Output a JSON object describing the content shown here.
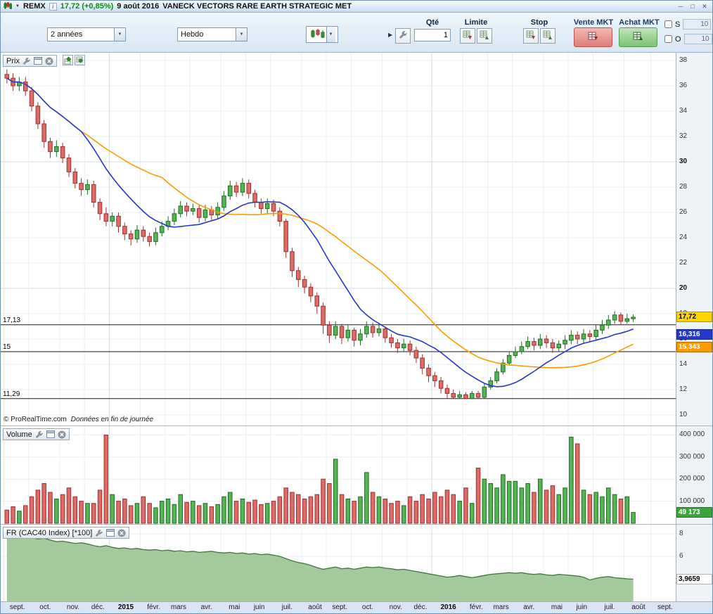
{
  "window": {
    "symbol": "REMX",
    "quote": "17,72 (+0,85%)",
    "date": "9 août 2016",
    "name": "VANECK VECTORS RARE EARTH STRATEGIC MET"
  },
  "icons": {
    "chevron_down": "▼",
    "collapse_arrow": "▶",
    "minimize": "─",
    "maximize": "□",
    "close": "✕",
    "info": "i"
  },
  "toolbar": {
    "period": "2 années",
    "timeframe": "Hebdo",
    "qty_label": "Qté",
    "qty_value": "1",
    "limit_label": "Limite",
    "stop_label": "Stop",
    "sell_mkt_label": "Vente MKT",
    "buy_mkt_label": "Achat MKT",
    "s_label": "S",
    "s_value": "10",
    "o_label": "O",
    "o_value": "10"
  },
  "panels": {
    "price": {
      "label": "Prix",
      "copyright": "© ProRealTime.com",
      "copyright_note": "Données en fin de journée"
    },
    "volume": {
      "label": "Volume"
    },
    "index": {
      "label": "FR (CAC40 Index) [*100]"
    }
  },
  "colors": {
    "candle_up": "#55b455",
    "candle_up_border": "#1e6e1e",
    "candle_down": "#dd6b66",
    "candle_down_border": "#a03030",
    "ma_fast": "#2438cc",
    "ma_slow": "#ff9a00",
    "index_fill": "#a3c99c",
    "index_line": "#42753f",
    "hline": "#1a1a1a"
  },
  "chart_data": {
    "type": "candlestick",
    "timeframe": "weekly",
    "x_months": [
      {
        "label": "sept.",
        "start": 0
      },
      {
        "label": "oct.",
        "start": 4
      },
      {
        "label": "nov.",
        "start": 9
      },
      {
        "label": "déc.",
        "start": 13
      },
      {
        "label": "2015",
        "start": 17,
        "bold": true
      },
      {
        "label": "févr.",
        "start": 22
      },
      {
        "label": "mars",
        "start": 26
      },
      {
        "label": "avr.",
        "start": 30
      },
      {
        "label": "mai",
        "start": 35
      },
      {
        "label": "juin",
        "start": 39
      },
      {
        "label": "juil.",
        "start": 43
      },
      {
        "label": "août",
        "start": 48
      },
      {
        "label": "sept.",
        "start": 52
      },
      {
        "label": "oct.",
        "start": 56
      },
      {
        "label": "nov.",
        "start": 61
      },
      {
        "label": "déc.",
        "start": 65
      },
      {
        "label": "2016",
        "start": 69,
        "bold": true
      },
      {
        "label": "févr.",
        "start": 74
      },
      {
        "label": "mars",
        "start": 78
      },
      {
        "label": "avr.",
        "start": 82
      },
      {
        "label": "mai",
        "start": 87
      },
      {
        "label": "juin",
        "start": 91
      },
      {
        "label": "juil.",
        "start": 95
      },
      {
        "label": "août",
        "start": 100
      },
      {
        "label": "sept.",
        "start": 104.3
      }
    ],
    "price": {
      "ylim": [
        10,
        38
      ],
      "ticks": [
        38,
        36,
        34,
        32,
        30,
        28,
        26,
        24,
        22,
        20,
        18,
        16,
        14,
        12,
        10
      ],
      "bold_ticks": [
        30,
        20
      ],
      "hlines": [
        {
          "value": 17.13,
          "label": "17,13"
        },
        {
          "value": 15,
          "label": "15"
        },
        {
          "value": 11.29,
          "label": "11,29"
        }
      ],
      "badges": [
        {
          "value": 17.72,
          "text": "17,72",
          "bg": "#ffd400",
          "fg": "#000000"
        },
        {
          "value": 16.316,
          "text": "16,316",
          "bg": "#2438cc",
          "fg": "#ffffff"
        },
        {
          "value": 15.343,
          "text": "15,343",
          "bg": "#ff9a00",
          "fg": "#ffffff"
        }
      ]
    },
    "moving_averages": [
      {
        "name": "MA fast",
        "period": 13,
        "color": "#2438cc",
        "last": 16.316
      },
      {
        "name": "MA slow",
        "period": 26,
        "color": "#ff9a00",
        "last": 15.343
      }
    ],
    "candles": [
      [
        36.9,
        37.3,
        36.2,
        36.6
      ],
      [
        36.6,
        37.0,
        35.6,
        36.0
      ],
      [
        36.0,
        36.7,
        35.6,
        36.3
      ],
      [
        36.3,
        36.7,
        35.2,
        35.6
      ],
      [
        35.6,
        35.9,
        34.0,
        34.4
      ],
      [
        34.4,
        34.7,
        32.6,
        33.0
      ],
      [
        33.0,
        33.3,
        31.1,
        31.6
      ],
      [
        31.6,
        31.9,
        30.3,
        30.8
      ],
      [
        30.8,
        31.7,
        30.4,
        31.2
      ],
      [
        31.2,
        31.5,
        29.9,
        30.3
      ],
      [
        30.3,
        30.6,
        28.8,
        29.2
      ],
      [
        29.2,
        29.5,
        27.9,
        28.3
      ],
      [
        28.3,
        28.7,
        27.3,
        27.8
      ],
      [
        27.8,
        28.6,
        27.4,
        28.2
      ],
      [
        28.2,
        28.5,
        26.4,
        26.8
      ],
      [
        26.8,
        27.1,
        25.4,
        25.9
      ],
      [
        25.9,
        26.4,
        24.9,
        25.3
      ],
      [
        25.3,
        26.0,
        24.9,
        25.7
      ],
      [
        25.7,
        26.0,
        24.4,
        24.9
      ],
      [
        24.9,
        25.2,
        23.8,
        24.3
      ],
      [
        24.3,
        24.6,
        23.4,
        23.9
      ],
      [
        23.9,
        25.0,
        23.6,
        24.6
      ],
      [
        24.6,
        24.9,
        23.7,
        24.1
      ],
      [
        24.1,
        24.4,
        23.3,
        23.7
      ],
      [
        23.7,
        24.8,
        23.4,
        24.4
      ],
      [
        24.4,
        25.3,
        24.1,
        24.9
      ],
      [
        24.9,
        25.7,
        24.6,
        25.3
      ],
      [
        25.3,
        26.3,
        25.0,
        25.9
      ],
      [
        25.9,
        26.9,
        25.6,
        26.5
      ],
      [
        26.5,
        26.8,
        25.7,
        26.1
      ],
      [
        26.1,
        26.7,
        25.8,
        26.3
      ],
      [
        26.3,
        26.6,
        25.2,
        25.6
      ],
      [
        25.6,
        26.6,
        25.3,
        26.2
      ],
      [
        26.2,
        26.5,
        25.4,
        25.8
      ],
      [
        25.8,
        26.8,
        25.5,
        26.4
      ],
      [
        26.4,
        27.7,
        26.1,
        27.3
      ],
      [
        27.3,
        28.5,
        27.0,
        28.1
      ],
      [
        28.1,
        28.4,
        27.2,
        27.6
      ],
      [
        27.6,
        28.7,
        27.3,
        28.3
      ],
      [
        28.3,
        28.6,
        27.1,
        27.5
      ],
      [
        27.5,
        27.8,
        26.4,
        26.8
      ],
      [
        26.8,
        27.1,
        25.9,
        26.3
      ],
      [
        26.3,
        27.1,
        25.9,
        26.7
      ],
      [
        26.7,
        27.0,
        25.7,
        26.1
      ],
      [
        26.1,
        26.4,
        24.9,
        25.3
      ],
      [
        25.3,
        25.5,
        22.4,
        22.9
      ],
      [
        22.9,
        23.2,
        20.9,
        21.4
      ],
      [
        21.4,
        21.7,
        20.1,
        20.7
      ],
      [
        20.7,
        21.0,
        19.6,
        20.1
      ],
      [
        20.1,
        20.4,
        18.9,
        19.4
      ],
      [
        19.4,
        19.7,
        18.0,
        18.6
      ],
      [
        18.6,
        18.9,
        16.4,
        17.1
      ],
      [
        17.1,
        17.4,
        15.7,
        16.3
      ],
      [
        16.3,
        17.4,
        16.0,
        17.0
      ],
      [
        17.0,
        17.2,
        15.6,
        16.1
      ],
      [
        16.1,
        17.1,
        15.8,
        16.7
      ],
      [
        16.7,
        16.9,
        15.4,
        15.9
      ],
      [
        15.9,
        16.8,
        15.5,
        16.4
      ],
      [
        16.4,
        17.4,
        16.1,
        17.0
      ],
      [
        17.0,
        17.3,
        16.1,
        16.5
      ],
      [
        16.5,
        17.2,
        16.2,
        16.8
      ],
      [
        16.8,
        17.0,
        15.7,
        16.1
      ],
      [
        16.1,
        16.4,
        15.3,
        15.7
      ],
      [
        15.7,
        16.0,
        14.9,
        15.3
      ],
      [
        15.3,
        16.0,
        15.0,
        15.6
      ],
      [
        15.6,
        15.9,
        14.7,
        15.1
      ],
      [
        15.1,
        15.4,
        14.1,
        14.5
      ],
      [
        14.5,
        14.8,
        13.2,
        13.7
      ],
      [
        13.7,
        14.0,
        12.6,
        13.1
      ],
      [
        13.1,
        13.4,
        12.2,
        12.7
      ],
      [
        12.7,
        13.0,
        11.7,
        12.1
      ],
      [
        12.1,
        12.4,
        11.3,
        11.7
      ],
      [
        11.7,
        12.0,
        11.3,
        11.4
      ],
      [
        11.4,
        11.9,
        11.29,
        11.6
      ],
      [
        11.6,
        11.8,
        11.29,
        11.3
      ],
      [
        11.3,
        11.9,
        11.25,
        11.7
      ],
      [
        11.7,
        11.9,
        11.3,
        11.4
      ],
      [
        11.4,
        12.5,
        11.3,
        12.2
      ],
      [
        12.2,
        13.0,
        12.0,
        12.7
      ],
      [
        12.7,
        13.7,
        12.5,
        13.4
      ],
      [
        13.4,
        14.4,
        13.2,
        14.1
      ],
      [
        14.1,
        15.0,
        13.9,
        14.7
      ],
      [
        14.7,
        15.4,
        14.5,
        15.0
      ],
      [
        15.0,
        15.8,
        14.8,
        15.4
      ],
      [
        15.4,
        16.2,
        15.2,
        15.8
      ],
      [
        15.8,
        16.1,
        15.1,
        15.5
      ],
      [
        15.5,
        16.4,
        15.2,
        16.0
      ],
      [
        16.0,
        16.3,
        15.3,
        15.7
      ],
      [
        15.7,
        16.0,
        14.9,
        15.3
      ],
      [
        15.3,
        15.9,
        15.0,
        15.6
      ],
      [
        15.6,
        16.3,
        15.2,
        15.9
      ],
      [
        15.9,
        16.7,
        15.6,
        16.3
      ],
      [
        16.3,
        16.6,
        15.6,
        16.0
      ],
      [
        16.0,
        16.8,
        15.7,
        16.4
      ],
      [
        16.4,
        16.7,
        15.8,
        16.2
      ],
      [
        16.2,
        17.1,
        15.9,
        16.7
      ],
      [
        16.7,
        17.5,
        16.4,
        17.1
      ],
      [
        17.1,
        17.9,
        16.8,
        17.5
      ],
      [
        17.5,
        18.2,
        17.2,
        17.9
      ],
      [
        17.9,
        18.1,
        17.1,
        17.4
      ],
      [
        17.4,
        18.0,
        17.2,
        17.6
      ],
      [
        17.6,
        17.95,
        17.35,
        17.72
      ]
    ],
    "volume": {
      "ticks": [
        {
          "value": 400000,
          "label": "400 000"
        },
        {
          "value": 300000,
          "label": "300 000"
        },
        {
          "value": 200000,
          "label": "200 000"
        },
        {
          "value": 100000,
          "label": "100 000"
        }
      ],
      "badge": {
        "value": 49173,
        "text": "49 173",
        "bg": "#3aa63a",
        "fg": "#ffffff"
      },
      "values": [
        60000,
        75000,
        55000,
        80000,
        120000,
        150000,
        180000,
        140000,
        110000,
        130000,
        160000,
        120000,
        100000,
        90000,
        90000,
        150000,
        400000,
        130000,
        100000,
        110000,
        80000,
        90000,
        120000,
        90000,
        70000,
        100000,
        110000,
        85000,
        130000,
        95000,
        100000,
        80000,
        90000,
        75000,
        85000,
        120000,
        140000,
        100000,
        110000,
        95000,
        105000,
        85000,
        90000,
        100000,
        120000,
        160000,
        140000,
        130000,
        110000,
        120000,
        130000,
        200000,
        180000,
        290000,
        130000,
        110000,
        100000,
        120000,
        230000,
        140000,
        120000,
        110000,
        90000,
        100000,
        80000,
        120000,
        100000,
        130000,
        110000,
        140000,
        120000,
        150000,
        130000,
        100000,
        160000,
        90000,
        250000,
        200000,
        180000,
        160000,
        220000,
        190000,
        190000,
        160000,
        180000,
        140000,
        200000,
        150000,
        170000,
        130000,
        160000,
        390000,
        360000,
        150000,
        130000,
        140000,
        120000,
        160000,
        130000,
        110000,
        120000,
        49173
      ]
    },
    "index": {
      "name": "FR (CAC40 Index) [*100]",
      "ticks": [
        {
          "value": 8,
          "label": "8"
        },
        {
          "value": 6,
          "label": "6"
        }
      ],
      "badge": {
        "value": 3.9659,
        "text": "3,9659",
        "bg": "#ffffff",
        "fg": "#000000"
      },
      "values": [
        7.78,
        7.85,
        7.8,
        7.72,
        7.65,
        7.55,
        7.6,
        7.45,
        7.3,
        7.35,
        7.25,
        7.15,
        7.2,
        7.1,
        6.95,
        6.85,
        6.95,
        6.8,
        6.7,
        6.75,
        6.65,
        6.7,
        6.6,
        6.55,
        6.6,
        6.5,
        6.55,
        6.45,
        6.5,
        6.4,
        6.45,
        6.35,
        6.4,
        6.45,
        6.35,
        6.3,
        6.35,
        6.25,
        6.3,
        6.2,
        6.25,
        6.15,
        6.2,
        6.1,
        6.0,
        5.8,
        5.6,
        5.45,
        5.35,
        5.2,
        5.0,
        4.85,
        4.95,
        5.05,
        4.9,
        4.95,
        4.85,
        4.95,
        5.05,
        5.0,
        5.05,
        4.95,
        4.9,
        4.8,
        4.85,
        4.75,
        4.65,
        4.55,
        4.45,
        4.35,
        4.25,
        4.15,
        4.2,
        4.3,
        4.2,
        4.1,
        4.2,
        4.3,
        4.4,
        4.45,
        4.5,
        4.55,
        4.5,
        4.55,
        4.45,
        4.4,
        4.45,
        4.35,
        4.3,
        4.4,
        4.35,
        4.3,
        4.25,
        4.15,
        3.9,
        4.05,
        4.15,
        4.2,
        4.1,
        4.05,
        4.0,
        3.97
      ]
    }
  }
}
